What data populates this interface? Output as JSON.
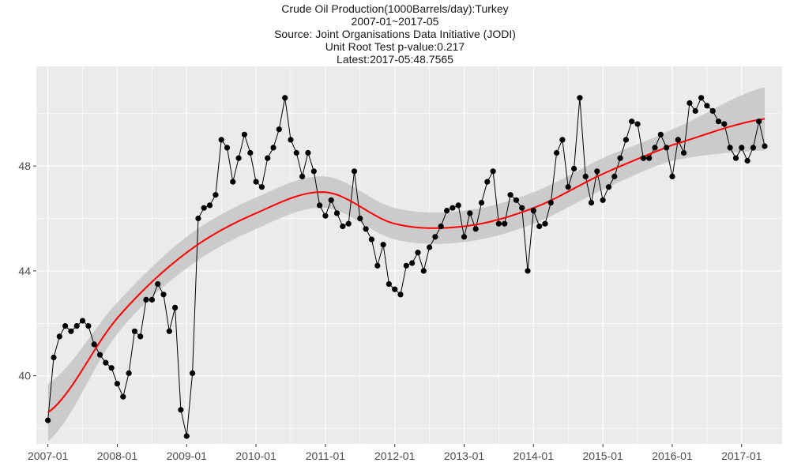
{
  "chart_data": {
    "type": "line",
    "title_lines": [
      "Crude Oil Production(1000Barrels/day):Turkey",
      "2007-01~2017-05",
      "Source: Joint Organisations Data Initiative (JODI)",
      "Unit Root Test p-value:0.217",
      "Latest:2017-05:48.7565"
    ],
    "xlabel": "",
    "ylabel": "",
    "x_ticks": [
      "2007-01",
      "2008-01",
      "2009-01",
      "2010-01",
      "2011-01",
      "2012-01",
      "2013-01",
      "2014-01",
      "2015-01",
      "2016-01",
      "2017-01"
    ],
    "y_ticks": [
      40,
      44,
      48
    ],
    "xlim": [
      "2006-11",
      "2017-08"
    ],
    "ylim": [
      37.4,
      51.8
    ],
    "grid": true,
    "colors": {
      "panel": "#ebebeb",
      "grid": "#ffffff",
      "series": "#000000",
      "trend": "#ff0000",
      "band": "#c8c8c8"
    },
    "series": [
      {
        "style": "line-points",
        "start": "2007-01",
        "values": [
          38.3,
          40.7,
          41.5,
          41.9,
          41.7,
          41.9,
          42.1,
          41.9,
          41.2,
          40.8,
          40.5,
          40.3,
          39.7,
          39.2,
          40.1,
          41.7,
          41.5,
          42.9,
          42.9,
          43.5,
          43.1,
          41.7,
          42.6,
          38.7,
          37.7,
          40.1,
          46.0,
          46.4,
          46.5,
          46.9,
          49.0,
          48.7,
          47.4,
          48.3,
          49.2,
          48.5,
          47.4,
          47.2,
          48.3,
          48.7,
          49.4,
          50.6,
          49.0,
          48.5,
          47.6,
          48.5,
          47.8,
          46.5,
          46.1,
          46.7,
          46.2,
          45.7,
          45.8,
          47.8,
          46.0,
          45.6,
          45.2,
          44.2,
          45.0,
          43.5,
          43.3,
          43.1,
          44.2,
          44.3,
          44.7,
          44.0,
          44.9,
          45.3,
          45.7,
          46.3,
          46.4,
          46.5,
          45.3,
          46.2,
          45.6,
          46.6,
          47.4,
          47.8,
          45.8,
          45.8,
          46.9,
          46.7,
          46.4,
          44.0,
          46.3,
          45.7,
          45.8,
          46.6,
          48.5,
          49.0,
          47.2,
          47.9,
          50.6,
          47.6,
          46.6,
          47.8,
          46.7,
          47.2,
          47.6,
          48.3,
          49.0,
          49.7,
          49.6,
          48.3,
          48.3,
          48.7,
          49.2,
          48.7,
          47.6,
          49.0,
          48.5,
          50.4,
          50.1,
          50.6,
          50.3,
          50.1,
          49.7,
          49.6,
          48.7,
          48.3,
          48.7,
          48.2,
          48.7,
          49.7,
          48.7565
        ]
      },
      {
        "style": "smooth-trend",
        "start": "2007-01",
        "knots": [
          {
            "date": "2007-01",
            "y": 38.6,
            "lo": 37.5,
            "hi": 39.7
          },
          {
            "date": "2008-01",
            "y": 42.2,
            "lo": 41.6,
            "hi": 42.8
          },
          {
            "date": "2009-01",
            "y": 44.7,
            "lo": 44.1,
            "hi": 45.3
          },
          {
            "date": "2010-01",
            "y": 46.2,
            "lo": 45.6,
            "hi": 46.8
          },
          {
            "date": "2011-01",
            "y": 47.0,
            "lo": 46.4,
            "hi": 47.6
          },
          {
            "date": "2012-01",
            "y": 45.8,
            "lo": 45.2,
            "hi": 46.4
          },
          {
            "date": "2013-01",
            "y": 45.7,
            "lo": 45.1,
            "hi": 46.3
          },
          {
            "date": "2014-01",
            "y": 46.4,
            "lo": 45.8,
            "hi": 47.0
          },
          {
            "date": "2015-01",
            "y": 47.7,
            "lo": 47.1,
            "hi": 48.3
          },
          {
            "date": "2016-01",
            "y": 48.8,
            "lo": 48.2,
            "hi": 49.4
          },
          {
            "date": "2017-05",
            "y": 49.8,
            "lo": 48.6,
            "hi": 51.0
          }
        ]
      }
    ]
  }
}
